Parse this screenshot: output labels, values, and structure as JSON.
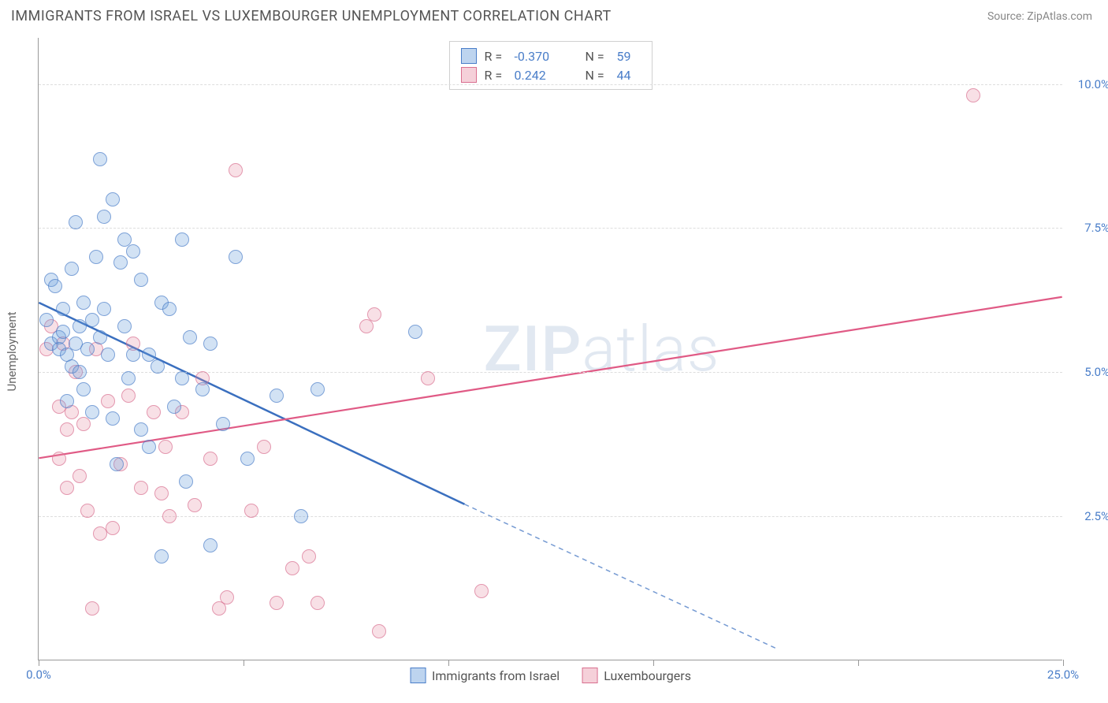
{
  "title": "IMMIGRANTS FROM ISRAEL VS LUXEMBOURGER UNEMPLOYMENT CORRELATION CHART",
  "source": "Source: ZipAtlas.com",
  "ylabel": "Unemployment",
  "watermark_zip": "ZIP",
  "watermark_rest": "atlas",
  "chart": {
    "type": "scatter",
    "xlim": [
      0,
      25
    ],
    "ylim": [
      0,
      10.8
    ],
    "y_gridlines": [
      2.5,
      5.0,
      7.5,
      10.0
    ],
    "y_tick_labels": [
      "2.5%",
      "5.0%",
      "7.5%",
      "10.0%"
    ],
    "x_ticks": [
      0,
      5,
      10,
      15,
      20,
      25
    ],
    "x_tick_labels_shown": {
      "first": "0.0%",
      "last": "25.0%"
    },
    "background_color": "#ffffff",
    "grid_color": "#dddddd",
    "axis_color": "#999999",
    "tick_label_color": "#4a7ec9",
    "legend_top": {
      "rows": [
        {
          "swatch": "blue",
          "R_label": "R =",
          "R_value": "-0.370",
          "N_label": "N =",
          "N_value": "59"
        },
        {
          "swatch": "pink",
          "R_label": "R =",
          "R_value": "0.242",
          "N_label": "N =",
          "N_value": "44"
        }
      ],
      "border_color": "#d0d0d0"
    },
    "legend_bottom": [
      {
        "swatch": "blue",
        "label": "Immigrants from Israel"
      },
      {
        "swatch": "pink",
        "label": "Luxembourgers"
      }
    ],
    "series": {
      "blue": {
        "color_fill": "rgba(108,160,220,0.42)",
        "color_stroke": "#4a7ec9",
        "marker_size": 18,
        "trend": {
          "x1": 0,
          "y1": 6.2,
          "x2": 10.4,
          "y2": 2.7,
          "solid_until_x": 10.4,
          "dash_to_x": 18.0,
          "dash_to_y": 0.2,
          "stroke": "#3a6fbf",
          "width": 2.5,
          "dash": "6 5"
        },
        "points": [
          [
            0.2,
            5.9
          ],
          [
            0.3,
            6.6
          ],
          [
            0.3,
            5.5
          ],
          [
            0.4,
            6.5
          ],
          [
            0.5,
            5.6
          ],
          [
            0.5,
            5.4
          ],
          [
            0.6,
            6.1
          ],
          [
            0.6,
            5.7
          ],
          [
            0.7,
            5.3
          ],
          [
            0.7,
            4.5
          ],
          [
            0.8,
            6.8
          ],
          [
            0.8,
            5.1
          ],
          [
            0.9,
            5.5
          ],
          [
            0.9,
            7.6
          ],
          [
            1.0,
            5.8
          ],
          [
            1.0,
            5.0
          ],
          [
            1.1,
            6.2
          ],
          [
            1.1,
            4.7
          ],
          [
            1.2,
            5.4
          ],
          [
            1.3,
            5.9
          ],
          [
            1.3,
            4.3
          ],
          [
            1.4,
            7.0
          ],
          [
            1.5,
            8.7
          ],
          [
            1.5,
            5.6
          ],
          [
            1.6,
            7.7
          ],
          [
            1.6,
            6.1
          ],
          [
            1.7,
            5.3
          ],
          [
            1.8,
            8.0
          ],
          [
            1.8,
            4.2
          ],
          [
            1.9,
            3.4
          ],
          [
            2.0,
            6.9
          ],
          [
            2.1,
            7.3
          ],
          [
            2.1,
            5.8
          ],
          [
            2.2,
            4.9
          ],
          [
            2.3,
            5.3
          ],
          [
            2.3,
            7.1
          ],
          [
            2.5,
            6.6
          ],
          [
            2.5,
            4.0
          ],
          [
            2.7,
            3.7
          ],
          [
            2.7,
            5.3
          ],
          [
            2.9,
            5.1
          ],
          [
            3.0,
            6.2
          ],
          [
            3.0,
            1.8
          ],
          [
            3.2,
            6.1
          ],
          [
            3.3,
            4.4
          ],
          [
            3.5,
            7.3
          ],
          [
            3.5,
            4.9
          ],
          [
            3.6,
            3.1
          ],
          [
            3.7,
            5.6
          ],
          [
            4.0,
            4.7
          ],
          [
            4.2,
            5.5
          ],
          [
            4.2,
            2.0
          ],
          [
            4.5,
            4.1
          ],
          [
            4.8,
            7.0
          ],
          [
            5.1,
            3.5
          ],
          [
            5.8,
            4.6
          ],
          [
            6.4,
            2.5
          ],
          [
            6.8,
            4.7
          ],
          [
            9.2,
            5.7
          ]
        ]
      },
      "pink": {
        "color_fill": "rgba(231,142,165,0.38)",
        "color_stroke": "#d96f8f",
        "marker_size": 18,
        "trend": {
          "x1": 0,
          "y1": 3.5,
          "x2": 25,
          "y2": 6.3,
          "stroke": "#e05a85",
          "width": 2.2
        },
        "points": [
          [
            0.2,
            5.4
          ],
          [
            0.3,
            5.8
          ],
          [
            0.5,
            4.4
          ],
          [
            0.5,
            3.5
          ],
          [
            0.6,
            5.5
          ],
          [
            0.7,
            4.0
          ],
          [
            0.7,
            3.0
          ],
          [
            0.8,
            4.3
          ],
          [
            0.9,
            5.0
          ],
          [
            1.0,
            3.2
          ],
          [
            1.1,
            4.1
          ],
          [
            1.2,
            2.6
          ],
          [
            1.3,
            0.9
          ],
          [
            1.4,
            5.4
          ],
          [
            1.5,
            2.2
          ],
          [
            1.7,
            4.5
          ],
          [
            1.8,
            2.3
          ],
          [
            2.0,
            3.4
          ],
          [
            2.2,
            4.6
          ],
          [
            2.3,
            5.5
          ],
          [
            2.5,
            3.0
          ],
          [
            2.8,
            4.3
          ],
          [
            3.0,
            2.9
          ],
          [
            3.1,
            3.7
          ],
          [
            3.2,
            2.5
          ],
          [
            3.5,
            4.3
          ],
          [
            3.8,
            2.7
          ],
          [
            4.0,
            4.9
          ],
          [
            4.2,
            3.5
          ],
          [
            4.4,
            0.9
          ],
          [
            4.6,
            1.1
          ],
          [
            4.8,
            8.5
          ],
          [
            5.2,
            2.6
          ],
          [
            5.5,
            3.7
          ],
          [
            5.8,
            1.0
          ],
          [
            6.2,
            1.6
          ],
          [
            6.6,
            1.8
          ],
          [
            6.8,
            1.0
          ],
          [
            8.0,
            5.8
          ],
          [
            8.2,
            6.0
          ],
          [
            8.3,
            0.5
          ],
          [
            9.5,
            4.9
          ],
          [
            10.8,
            1.2
          ],
          [
            22.8,
            9.8
          ]
        ]
      }
    }
  }
}
